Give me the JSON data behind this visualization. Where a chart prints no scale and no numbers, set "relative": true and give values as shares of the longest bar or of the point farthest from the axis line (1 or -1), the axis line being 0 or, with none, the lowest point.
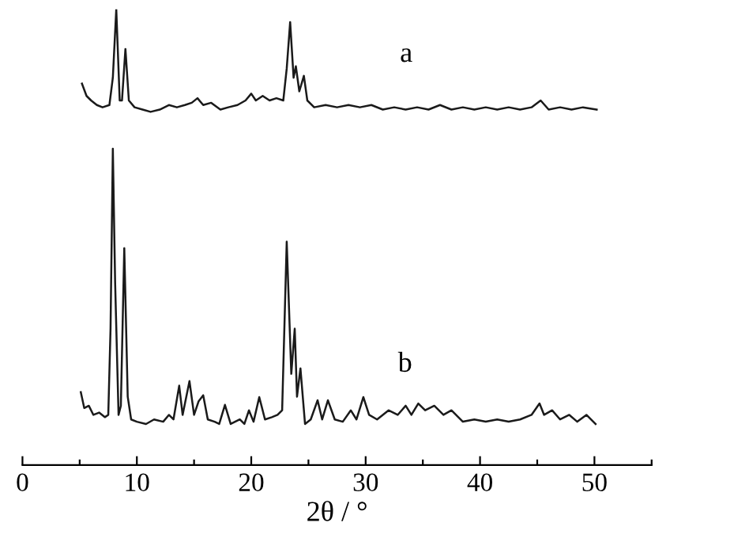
{
  "chart_data": {
    "type": "line",
    "xlabel": "2θ / °",
    "relative": true,
    "xlim": [
      0,
      55
    ],
    "xticks": [
      0,
      {
        "value": 5,
        "label": null
      },
      10,
      {
        "value": 15,
        "label": null
      },
      20,
      {
        "value": 25,
        "label": null
      },
      30,
      {
        "value": 35,
        "label": null
      },
      40,
      {
        "value": 45,
        "label": null
      },
      50,
      {
        "value": 55,
        "label": null
      }
    ],
    "tick_labels": "x",
    "grid": false,
    "legend": false,
    "marker": "none",
    "line_style": "solid",
    "series": [
      {
        "name": "a",
        "color": "#1a1a1a",
        "x": [
          5.2,
          5.6,
          6.0,
          6.5,
          7.0,
          7.6,
          7.9,
          8.2,
          8.5,
          8.7,
          9.0,
          9.3,
          9.8,
          10.5,
          11.2,
          12,
          12.8,
          13.5,
          14.2,
          14.8,
          15.3,
          15.8,
          16.5,
          17.3,
          18,
          18.8,
          19.5,
          20.0,
          20.4,
          21,
          21.6,
          22.2,
          22.8,
          23.1,
          23.4,
          23.7,
          23.9,
          24.2,
          24.6,
          24.9,
          25.5,
          26.5,
          27.5,
          28.5,
          29.5,
          30.5,
          31.5,
          32.5,
          33.5,
          34.5,
          35.5,
          36.5,
          37.5,
          38.5,
          39.5,
          40.5,
          41.5,
          42.5,
          43.5,
          44.5,
          45.3,
          46,
          47,
          48,
          49,
          50.2
        ],
        "values": [
          0.837,
          0.81,
          0.8,
          0.79,
          0.785,
          0.79,
          0.85,
          1.0,
          0.8,
          0.8,
          0.913,
          0.8,
          0.785,
          0.78,
          0.775,
          0.78,
          0.79,
          0.785,
          0.79,
          0.795,
          0.805,
          0.79,
          0.795,
          0.78,
          0.785,
          0.79,
          0.8,
          0.815,
          0.8,
          0.81,
          0.8,
          0.805,
          0.8,
          0.87,
          0.972,
          0.85,
          0.875,
          0.82,
          0.854,
          0.8,
          0.785,
          0.79,
          0.785,
          0.79,
          0.785,
          0.79,
          0.78,
          0.785,
          0.78,
          0.785,
          0.78,
          0.79,
          0.78,
          0.785,
          0.78,
          0.785,
          0.78,
          0.785,
          0.78,
          0.785,
          0.8,
          0.78,
          0.785,
          0.78,
          0.785,
          0.78
        ]
      },
      {
        "name": "b",
        "color": "#1a1a1a",
        "x": [
          5.1,
          5.4,
          5.8,
          6.2,
          6.7,
          7.2,
          7.5,
          7.7,
          7.9,
          8.1,
          8.4,
          8.6,
          8.9,
          9.2,
          9.5,
          10,
          10.8,
          11.5,
          12.3,
          12.8,
          13.2,
          13.7,
          14.0,
          14.6,
          15.0,
          15.4,
          15.8,
          16.2,
          16.8,
          17.2,
          17.7,
          18.2,
          19,
          19.4,
          19.8,
          20.2,
          20.7,
          21.2,
          21.8,
          22.3,
          22.7,
          23.1,
          23.5,
          23.8,
          24.0,
          24.3,
          24.7,
          25.2,
          25.8,
          26.2,
          26.7,
          27.3,
          28,
          28.7,
          29.2,
          29.8,
          30.3,
          31,
          32,
          32.8,
          33.5,
          34,
          34.6,
          35.2,
          36,
          36.8,
          37.5,
          38.5,
          39.5,
          40.5,
          41.5,
          42.5,
          43.5,
          44.5,
          45.2,
          45.6,
          46.3,
          47,
          47.8,
          48.5,
          49.3,
          50.1
        ],
        "values": [
          0.16,
          0.125,
          0.13,
          0.11,
          0.115,
          0.105,
          0.11,
          0.3,
          0.694,
          0.4,
          0.11,
          0.13,
          0.476,
          0.15,
          0.1,
          0.095,
          0.09,
          0.1,
          0.095,
          0.11,
          0.1,
          0.174,
          0.11,
          0.184,
          0.11,
          0.14,
          0.153,
          0.1,
          0.095,
          0.09,
          0.132,
          0.09,
          0.1,
          0.09,
          0.12,
          0.095,
          0.149,
          0.1,
          0.105,
          0.11,
          0.12,
          0.49,
          0.2,
          0.299,
          0.15,
          0.212,
          0.09,
          0.1,
          0.142,
          0.1,
          0.142,
          0.1,
          0.095,
          0.12,
          0.1,
          0.149,
          0.11,
          0.1,
          0.12,
          0.11,
          0.13,
          0.11,
          0.135,
          0.12,
          0.13,
          0.11,
          0.12,
          0.095,
          0.1,
          0.095,
          0.1,
          0.095,
          0.1,
          0.11,
          0.135,
          0.11,
          0.12,
          0.1,
          0.11,
          0.095,
          0.11,
          0.09
        ]
      }
    ]
  }
}
